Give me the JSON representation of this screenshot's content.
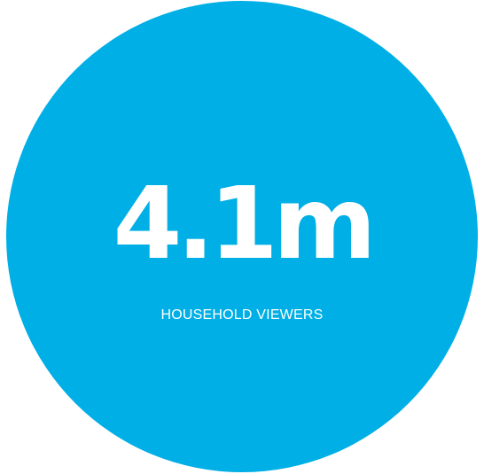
{
  "stat": {
    "value": "4.1m",
    "label": "HOUSEHOLD VIEWERS"
  },
  "colors": {
    "circle": "#00afe6",
    "text": "#ffffff",
    "background": "#ffffff"
  }
}
